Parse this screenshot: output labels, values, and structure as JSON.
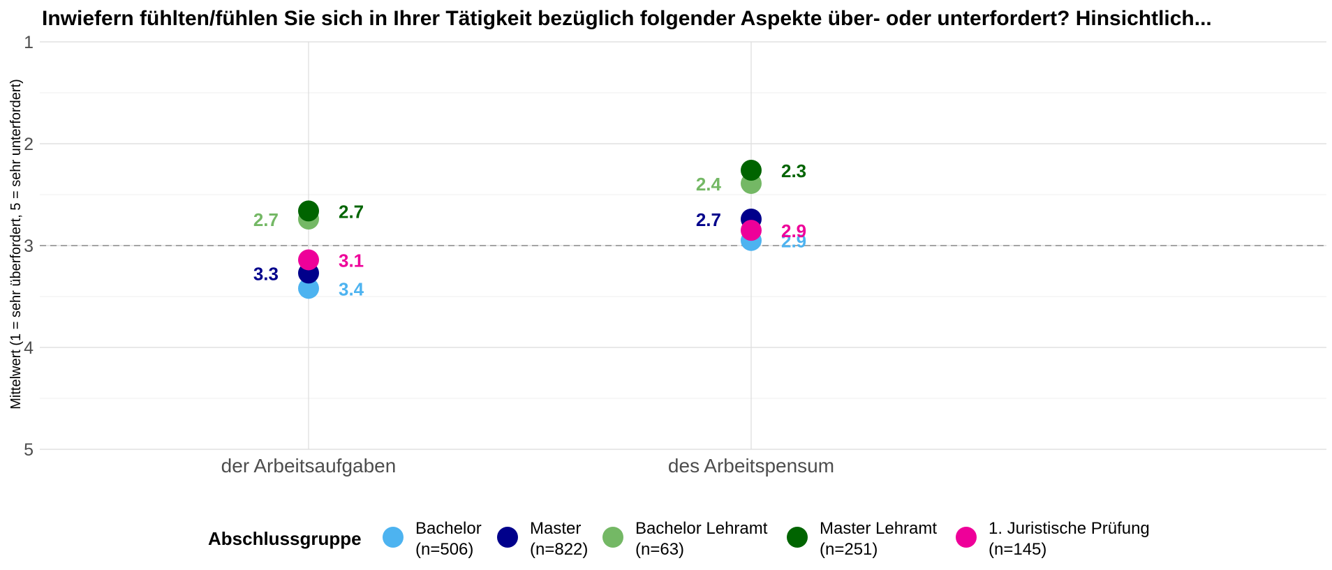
{
  "chart_data": {
    "type": "scatter",
    "title": "Inwiefern fühlten/fühlen Sie sich in Ihrer Tätigkeit bezüglich folgender Aspekte über- oder unterfordert? Hinsichtlich...",
    "ylabel": "Mittelwert (1 = sehr überfordert, 5 = sehr unterfordert)",
    "xlabel": "",
    "ylim": [
      1,
      5
    ],
    "y_reversed": true,
    "yticks": [
      "1",
      "2",
      "3",
      "4",
      "5"
    ],
    "reference_line": 3,
    "categories": [
      "der Arbeitsaufgaben",
      "des Arbeitspensum"
    ],
    "legend_title": "Abschlussgruppe",
    "series": [
      {
        "name": "Bachelor",
        "n": "(n=506)",
        "color": "#4DB3F0",
        "values": [
          3.42,
          2.95
        ],
        "labels": [
          "3.4",
          "2.9"
        ],
        "label_side": [
          "right",
          "right"
        ]
      },
      {
        "name": "Master",
        "n": "(n=822)",
        "color": "#00008B",
        "values": [
          3.27,
          2.74
        ],
        "labels": [
          "3.3",
          "2.7"
        ],
        "label_side": [
          "left",
          "left"
        ]
      },
      {
        "name": "Bachelor Lehramt",
        "n": "(n=63)",
        "color": "#74B865",
        "values": [
          2.74,
          2.39
        ],
        "labels": [
          "2.7",
          "2.4"
        ],
        "label_side": [
          "left",
          "left"
        ]
      },
      {
        "name": "Master Lehramt",
        "n": "(n=251)",
        "color": "#006400",
        "values": [
          2.66,
          2.26
        ],
        "labels": [
          "2.7",
          "2.3"
        ],
        "label_side": [
          "right",
          "right"
        ]
      },
      {
        "name": "1. Juristische Prüfung",
        "n": "(n=145)",
        "color": "#EE0099",
        "values": [
          3.14,
          2.85
        ],
        "labels": [
          "3.1",
          "2.9"
        ],
        "label_side": [
          "right",
          "right"
        ]
      }
    ]
  }
}
